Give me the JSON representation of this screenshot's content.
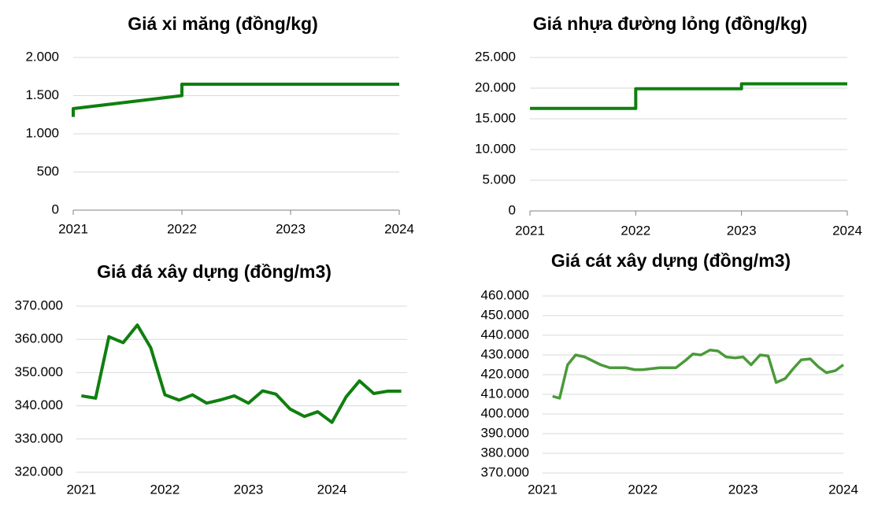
{
  "chart_data": [
    {
      "type": "line",
      "title": "Giá xi măng (đồng/kg)",
      "color": "#0f7f0f",
      "grid": true,
      "x": [
        2021,
        2021,
        2022,
        2022,
        2024
      ],
      "values": [
        1220,
        1330,
        1500,
        1650,
        1650
      ],
      "xlim": [
        2021,
        2024
      ],
      "xticks": [
        2021,
        2022,
        2023,
        2024
      ],
      "ylim": [
        0,
        2000
      ],
      "yticks": [
        0,
        500,
        {
          "value": 1000,
          "label": "1.000"
        },
        {
          "value": 1500,
          "label": "1.500"
        },
        {
          "value": 2000,
          "label": "2.000"
        }
      ]
    },
    {
      "type": "line",
      "title": "Giá nhựa đường lỏng (đồng/kg)",
      "color": "#0f7f0f",
      "grid": true,
      "x": [
        2021,
        2022,
        2022,
        2023,
        2023,
        2024
      ],
      "values": [
        16700,
        16700,
        19900,
        19900,
        20700,
        20700
      ],
      "xlim": [
        2021,
        2024
      ],
      "xticks": [
        2021,
        2022,
        2023,
        2024
      ],
      "ylim": [
        0,
        25000
      ],
      "yticks": [
        0,
        {
          "value": 5000,
          "label": "5.000"
        },
        {
          "value": 10000,
          "label": "10.000"
        },
        {
          "value": 15000,
          "label": "15.000"
        },
        {
          "value": 20000,
          "label": "20.000"
        },
        {
          "value": 25000,
          "label": "25.000"
        }
      ]
    },
    {
      "type": "line",
      "title": "Giá đá xây dựng (đồng/m3)",
      "color": "#0f7f0f",
      "grid": true,
      "x": [
        2021,
        2021.17,
        2021.33,
        2021.5,
        2021.67,
        2021.83,
        2022,
        2022.17,
        2022.33,
        2022.5,
        2022.67,
        2022.83,
        2023,
        2023.17,
        2023.33,
        2023.5,
        2023.67,
        2023.83,
        2024,
        2024.17,
        2024.33,
        2024.5,
        2024.67,
        2024.83
      ],
      "values": [
        343000,
        342300,
        360800,
        359000,
        364300,
        357500,
        343300,
        341700,
        343300,
        340800,
        341800,
        343000,
        340800,
        344500,
        343500,
        339000,
        336800,
        338200,
        335000,
        342700,
        347500,
        343700,
        344400,
        344400
      ],
      "xlim": [
        2020.94,
        2024.9
      ],
      "xticks": [
        2021,
        2022,
        2023,
        2024
      ],
      "ylim": [
        320000,
        370000
      ],
      "yticks": [
        {
          "value": 320000,
          "label": "320.000"
        },
        {
          "value": 330000,
          "label": "330.000"
        },
        {
          "value": 340000,
          "label": "340.000"
        },
        {
          "value": 350000,
          "label": "350.000"
        },
        {
          "value": 360000,
          "label": "360.000"
        },
        {
          "value": 370000,
          "label": "370.000"
        }
      ]
    },
    {
      "type": "line",
      "title": "Giá cát xây dựng (đồng/m3)",
      "color": "#4a9a3a",
      "grid": true,
      "x": [
        2021.1,
        2021.17,
        2021.25,
        2021.33,
        2021.42,
        2021.5,
        2021.58,
        2021.67,
        2021.75,
        2021.83,
        2021.92,
        2022,
        2022.08,
        2022.17,
        2022.25,
        2022.33,
        2022.42,
        2022.5,
        2022.58,
        2022.67,
        2022.75,
        2022.83,
        2022.92,
        2023,
        2023.08,
        2023.17,
        2023.25,
        2023.33,
        2023.42,
        2023.5,
        2023.58,
        2023.67,
        2023.75,
        2023.83,
        2023.92,
        2024
      ],
      "values": [
        409000,
        408000,
        425000,
        430000,
        429000,
        427000,
        425000,
        423500,
        423500,
        423500,
        422500,
        422500,
        423000,
        423500,
        423500,
        423500,
        427000,
        430500,
        430000,
        432500,
        432000,
        429000,
        428500,
        429000,
        425000,
        430000,
        429500,
        416000,
        418000,
        423000,
        427500,
        428000,
        424000,
        421000,
        422000,
        425000
      ],
      "xlim": [
        2021,
        2024
      ],
      "xticks": [
        2021,
        2022,
        2023,
        2024
      ],
      "ylim": [
        370000,
        460000
      ],
      "yticks": [
        {
          "value": 370000,
          "label": "370.000"
        },
        {
          "value": 380000,
          "label": "380.000"
        },
        {
          "value": 390000,
          "label": "390.000"
        },
        {
          "value": 400000,
          "label": "400.000"
        },
        {
          "value": 410000,
          "label": "410.000"
        },
        {
          "value": 420000,
          "label": "420.000"
        },
        {
          "value": 430000,
          "label": "430.000"
        },
        {
          "value": 440000,
          "label": "440.000"
        },
        {
          "value": 450000,
          "label": "450.000"
        },
        {
          "value": 460000,
          "label": "460.000"
        }
      ]
    }
  ]
}
